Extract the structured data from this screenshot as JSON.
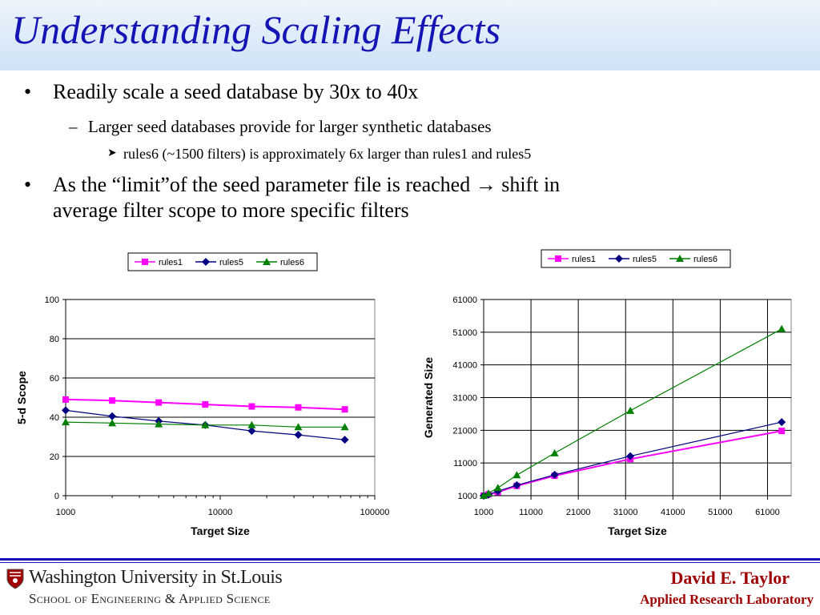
{
  "slide": {
    "title": "Understanding Scaling Effects",
    "bullets": [
      {
        "level": 1,
        "text": "Readily scale a seed database by 30x to 40x"
      },
      {
        "level": 2,
        "text": "Larger seed databases provide for larger synthetic databases"
      },
      {
        "level": 3,
        "text": "rules6 (~1500 filters) is approximately 6x larger than rules1 and rules5"
      },
      {
        "level": 1,
        "text": "As the “limit”of the seed parameter file is reached",
        "arrow": "→",
        "text_after": "shift in",
        "text_line2": "average filter scope to more specific filters"
      }
    ]
  },
  "footer": {
    "university": "Washington University in St.Louis",
    "school": "School of Engineering & Applied Science",
    "author": "David E. Taylor",
    "lab": "Applied Research Laboratory",
    "logo_icon": "shield-icon"
  },
  "colors": {
    "title": "#1414b4",
    "rules1": "#ff00ff",
    "rules5": "#000080",
    "rules6": "#008000",
    "footer_text": "#a00000"
  },
  "chart_data": [
    {
      "type": "line",
      "xlabel": "Target Size",
      "ylabel": "5-d Scope",
      "xscale": "log",
      "xlim": [
        1000,
        100000
      ],
      "ylim": [
        0,
        100
      ],
      "xticks": [
        "1000",
        "10000",
        "100000"
      ],
      "yticks": [
        "0",
        "20",
        "40",
        "60",
        "80",
        "100"
      ],
      "grid": "horizontal",
      "legend": "top",
      "x": [
        1000,
        2000,
        4000,
        8000,
        16000,
        32000,
        64000
      ],
      "series": [
        {
          "name": "rules1",
          "marker": "square",
          "values": [
            49,
            48.5,
            47.5,
            46.5,
            45.5,
            45,
            44
          ]
        },
        {
          "name": "rules5",
          "marker": "diamond",
          "values": [
            43.5,
            40.5,
            38,
            36,
            33,
            31,
            28.5
          ]
        },
        {
          "name": "rules6",
          "marker": "triangle",
          "values": [
            37.5,
            37,
            36.5,
            36,
            36,
            35,
            35
          ]
        }
      ]
    },
    {
      "type": "line",
      "xlabel": "Target Size",
      "ylabel": "Generated Size",
      "xlim": [
        1000,
        66000
      ],
      "ylim": [
        1000,
        61000
      ],
      "xticks": [
        "1000",
        "11000",
        "21000",
        "31000",
        "41000",
        "51000",
        "61000"
      ],
      "yticks": [
        "1000",
        "11000",
        "21000",
        "31000",
        "41000",
        "51000",
        "61000"
      ],
      "grid": "both",
      "legend": "top",
      "x": [
        1000,
        2000,
        4000,
        8000,
        16000,
        32000,
        64000
      ],
      "series": [
        {
          "name": "rules1",
          "marker": "square",
          "values": [
            1000,
            1400,
            2100,
            4000,
            7100,
            12200,
            20800
          ]
        },
        {
          "name": "rules5",
          "marker": "diamond",
          "values": [
            1000,
            1300,
            2400,
            4200,
            7400,
            13100,
            23500
          ]
        },
        {
          "name": "rules6",
          "marker": "triangle",
          "values": [
            1000,
            1700,
            3400,
            7300,
            14000,
            27000,
            52000
          ]
        }
      ]
    }
  ]
}
